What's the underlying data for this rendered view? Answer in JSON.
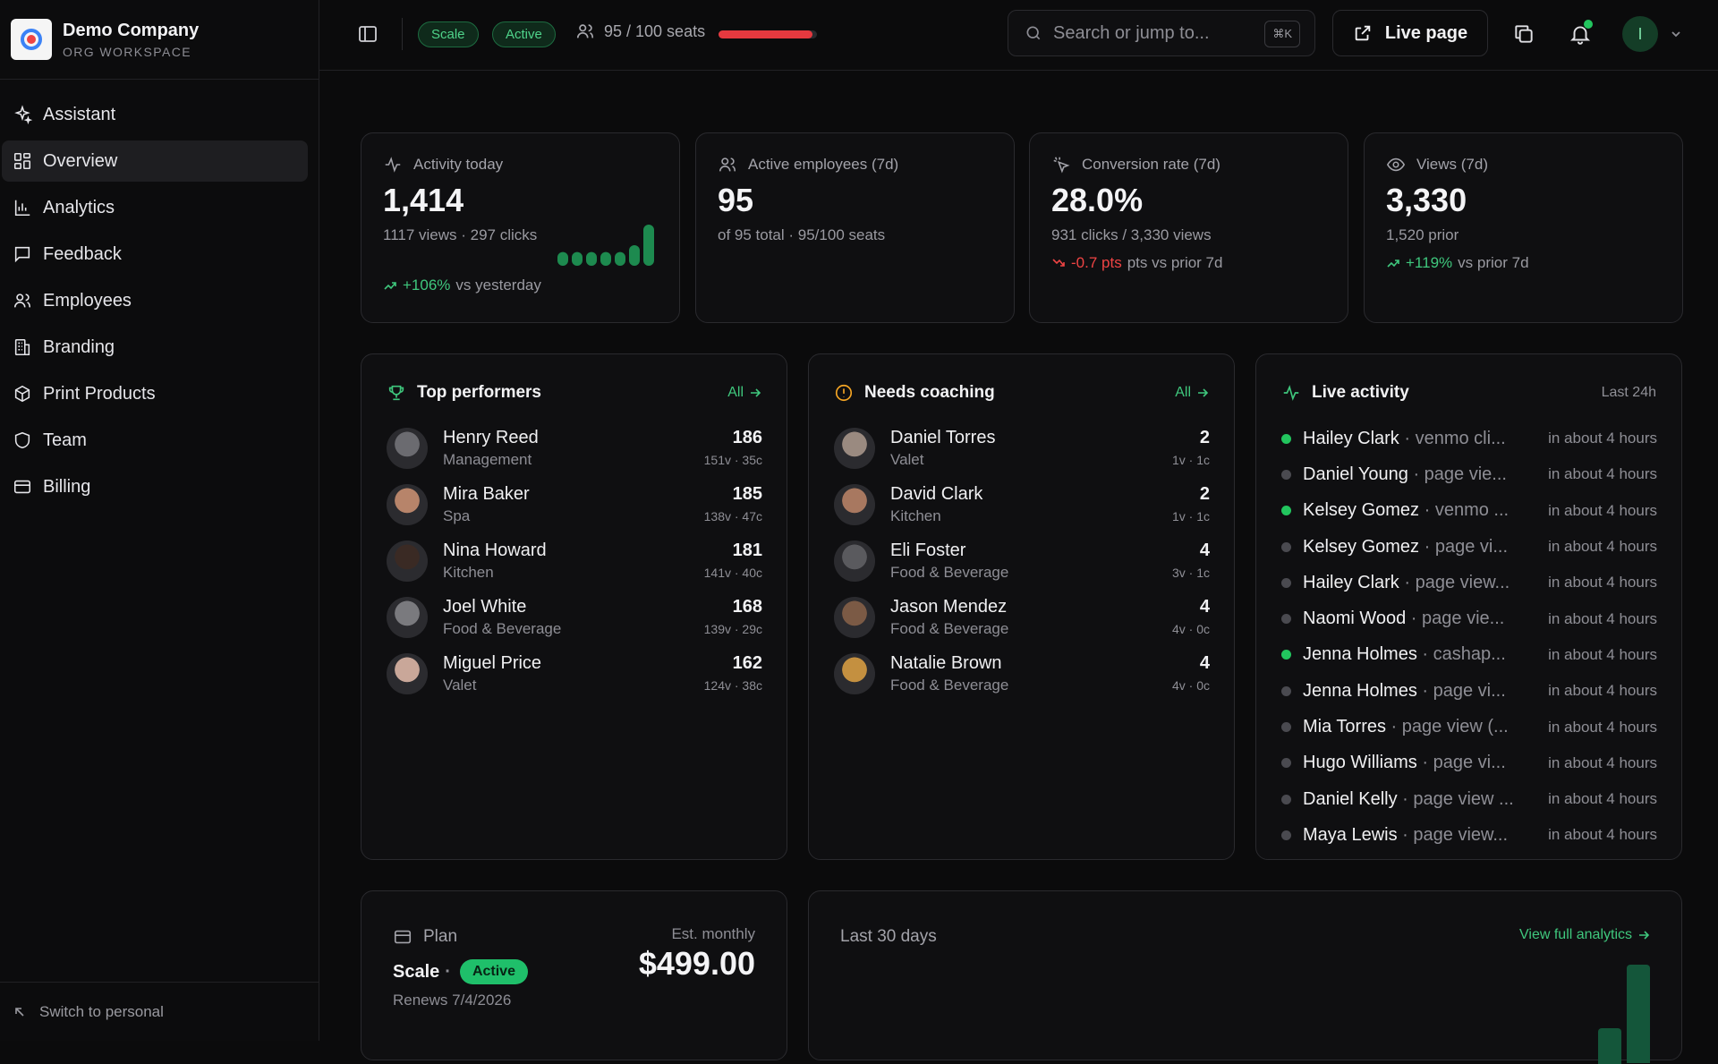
{
  "brand": {
    "name": "Demo Company",
    "subtitle": "ORG WORKSPACE"
  },
  "nav": [
    {
      "label": "Assistant",
      "icon": "sparkles-icon"
    },
    {
      "label": "Overview",
      "icon": "grid-icon",
      "active": true
    },
    {
      "label": "Analytics",
      "icon": "bar-chart-icon"
    },
    {
      "label": "Feedback",
      "icon": "message-icon"
    },
    {
      "label": "Employees",
      "icon": "users-icon"
    },
    {
      "label": "Branding",
      "icon": "building-icon"
    },
    {
      "label": "Print Products",
      "icon": "package-icon"
    },
    {
      "label": "Team",
      "icon": "shield-icon"
    },
    {
      "label": "Billing",
      "icon": "credit-card-icon"
    }
  ],
  "sidebar_footer": {
    "switch_label": "Switch to personal"
  },
  "topbar": {
    "plan_pill": "Scale",
    "status_pill": "Active",
    "seats_text": "95 / 100 seats",
    "seats_used": 95,
    "seats_total": 100,
    "search_placeholder": "Search or jump to...",
    "search_shortcut": "⌘K",
    "live_page_label": "Live page",
    "avatar_initial": "I"
  },
  "stats": [
    {
      "label": "Activity today",
      "value": "1,414",
      "sub": "1117 views · 297 clicks",
      "trend_value": "+106%",
      "trend_text": "vs yesterday",
      "trend_dir": "up",
      "mini_bars": [
        2,
        2,
        2,
        2,
        2,
        3,
        6
      ]
    },
    {
      "label": "Active employees (7d)",
      "value": "95",
      "sub": "of 95 total · 95/100 seats"
    },
    {
      "label": "Conversion rate (7d)",
      "value": "28.0%",
      "sub": "931 clicks / 3,330 views",
      "trend_value": "-0.7 pts",
      "trend_text": "pts vs prior 7d",
      "trend_dir": "down"
    },
    {
      "label": "Views (7d)",
      "value": "3,330",
      "sub": "1,520 prior",
      "trend_value": "+119%",
      "trend_text": "vs prior 7d",
      "trend_dir": "up"
    }
  ],
  "top_performers": {
    "title": "Top performers",
    "link": "All",
    "items": [
      {
        "name": "Henry Reed",
        "dept": "Management",
        "score": "186",
        "stat": "151v · 35c"
      },
      {
        "name": "Mira Baker",
        "dept": "Spa",
        "score": "185",
        "stat": "138v · 47c"
      },
      {
        "name": "Nina Howard",
        "dept": "Kitchen",
        "score": "181",
        "stat": "141v · 40c"
      },
      {
        "name": "Joel White",
        "dept": "Food & Beverage",
        "score": "168",
        "stat": "139v · 29c"
      },
      {
        "name": "Miguel Price",
        "dept": "Valet",
        "score": "162",
        "stat": "124v · 38c"
      }
    ]
  },
  "needs_coaching": {
    "title": "Needs coaching",
    "link": "All",
    "items": [
      {
        "name": "Daniel Torres",
        "dept": "Valet",
        "score": "2",
        "stat": "1v · 1c"
      },
      {
        "name": "David Clark",
        "dept": "Kitchen",
        "score": "2",
        "stat": "1v · 1c"
      },
      {
        "name": "Eli Foster",
        "dept": "Food & Beverage",
        "score": "4",
        "stat": "3v · 1c"
      },
      {
        "name": "Jason Mendez",
        "dept": "Food & Beverage",
        "score": "4",
        "stat": "4v · 0c"
      },
      {
        "name": "Natalie Brown",
        "dept": "Food & Beverage",
        "score": "4",
        "stat": "4v · 0c"
      }
    ]
  },
  "live_activity": {
    "title": "Live activity",
    "range": "Last 24h",
    "items": [
      {
        "name": "Hailey Clark",
        "kind": "venmo cli...",
        "time": "in about 4 hours",
        "highlight": true
      },
      {
        "name": "Daniel Young",
        "kind": "page vie...",
        "time": "in about 4 hours",
        "highlight": false
      },
      {
        "name": "Kelsey Gomez",
        "kind": "venmo ...",
        "time": "in about 4 hours",
        "highlight": true
      },
      {
        "name": "Kelsey Gomez",
        "kind": "page vi...",
        "time": "in about 4 hours",
        "highlight": false
      },
      {
        "name": "Hailey Clark",
        "kind": "page view...",
        "time": "in about 4 hours",
        "highlight": false
      },
      {
        "name": "Naomi Wood",
        "kind": "page vie...",
        "time": "in about 4 hours",
        "highlight": false
      },
      {
        "name": "Jenna Holmes",
        "kind": "cashap...",
        "time": "in about 4 hours",
        "highlight": true
      },
      {
        "name": "Jenna Holmes",
        "kind": "page vi...",
        "time": "in about 4 hours",
        "highlight": false
      },
      {
        "name": "Mia Torres",
        "kind": "page view (...",
        "time": "in about 4 hours",
        "highlight": false
      },
      {
        "name": "Hugo Williams",
        "kind": "page vi...",
        "time": "in about 4 hours",
        "highlight": false
      },
      {
        "name": "Daniel Kelly",
        "kind": "page view ...",
        "time": "in about 4 hours",
        "highlight": false
      },
      {
        "name": "Maya Lewis",
        "kind": "page view...",
        "time": "in about 4 hours",
        "highlight": false
      }
    ]
  },
  "plan": {
    "label": "Plan",
    "name": "Scale",
    "status": "Active",
    "renews": "Renews 7/4/2026",
    "est_label": "Est. monthly",
    "price": "$499.00"
  },
  "last30": {
    "title": "Last 30 days",
    "link": "View full analytics"
  },
  "colors": {
    "accent": "#3fc77d",
    "danger": "#ef4444",
    "bg": "#0b0b0c",
    "card": "#0f0f11"
  }
}
